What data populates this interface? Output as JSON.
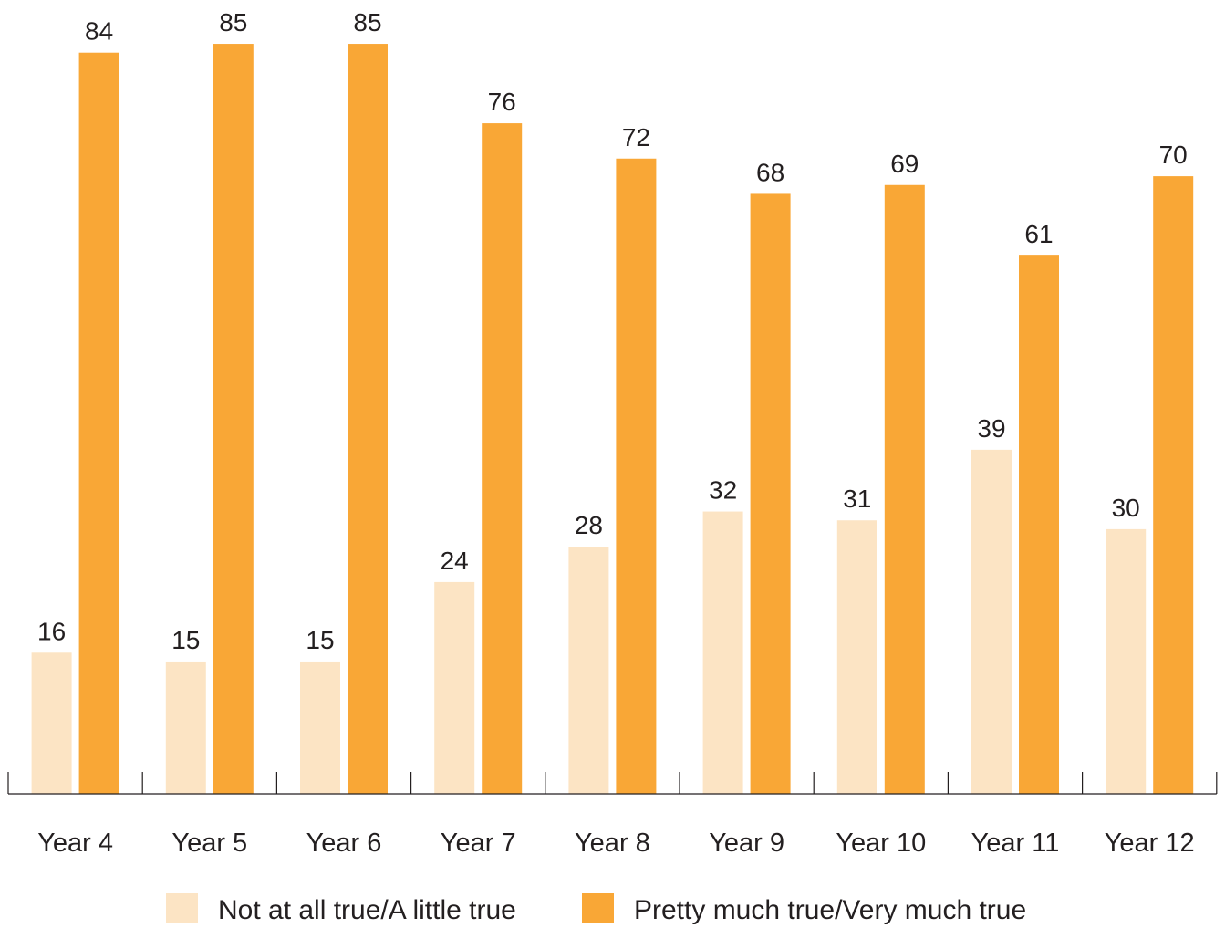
{
  "chart_data": {
    "type": "bar",
    "categories": [
      "Year 4",
      "Year 5",
      "Year 6",
      "Year 7",
      "Year 8",
      "Year 9",
      "Year 10",
      "Year 11",
      "Year 12"
    ],
    "series": [
      {
        "name": "Not at all true/A little true",
        "values": [
          16,
          15,
          15,
          24,
          28,
          32,
          31,
          39,
          30
        ]
      },
      {
        "name": "Pretty much true/Very much true",
        "values": [
          84,
          85,
          85,
          76,
          72,
          68,
          69,
          61,
          70
        ]
      }
    ],
    "colors": [
      "#fce4c4",
      "#f9a736"
    ],
    "ylim": [
      0,
      100
    ],
    "grid": false,
    "legend": "bottom"
  }
}
